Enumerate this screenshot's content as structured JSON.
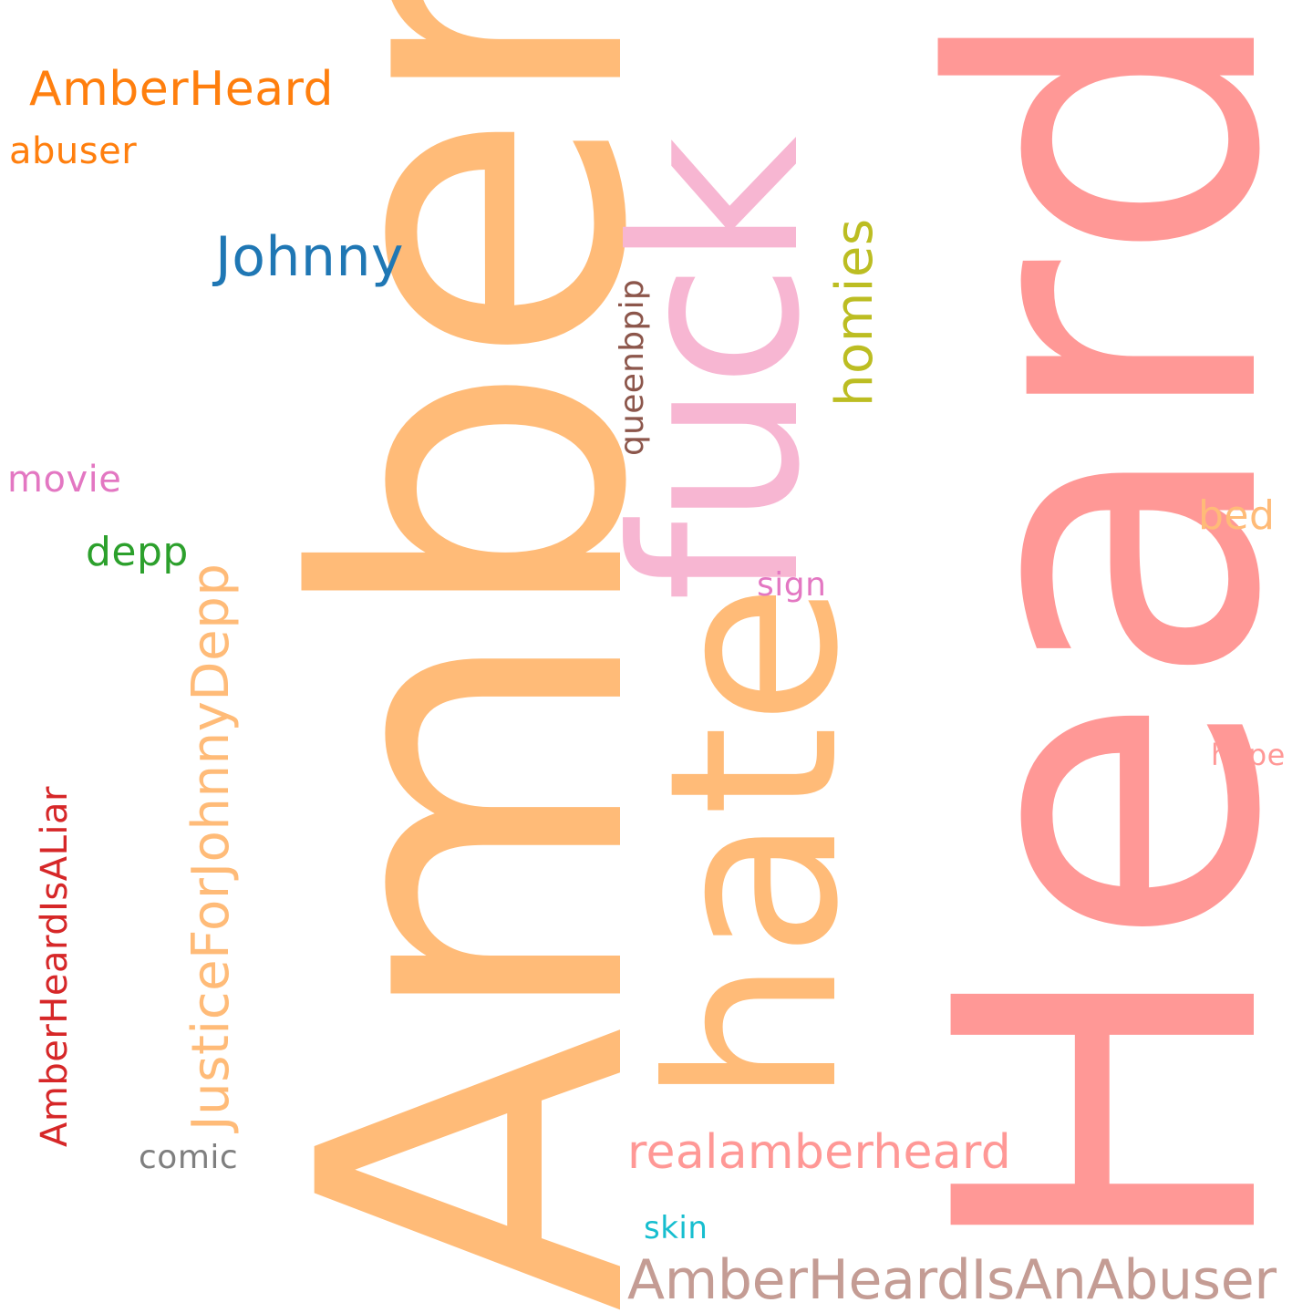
{
  "words": [
    {
      "id": "heard",
      "text": "Heard",
      "color": "#ff9896"
    },
    {
      "id": "amber",
      "text": "Amber",
      "color": "#ffbb78"
    },
    {
      "id": "fuck",
      "text": "fuck",
      "color": "#f7b6d2"
    },
    {
      "id": "hate",
      "text": "hate",
      "color": "#ffbb78"
    },
    {
      "id": "amberheardisanabuser",
      "text": "AmberHeardIsAnAbuser",
      "color": "#c49c94"
    },
    {
      "id": "justiceforjohnnydepp",
      "text": "JusticeForJohnnyDepp",
      "color": "#ffbb78"
    },
    {
      "id": "realamberheard",
      "text": "realamberheard",
      "color": "#ff9896"
    },
    {
      "id": "amberheard",
      "text": "AmberHeard",
      "color": "#ff7f0e"
    },
    {
      "id": "johnny",
      "text": "Johnny",
      "color": "#1f77b4"
    },
    {
      "id": "homies",
      "text": "homies",
      "color": "#bcbd22"
    },
    {
      "id": "amberheardisaliar",
      "text": "AmberHeardIsALiar",
      "color": "#d62728"
    },
    {
      "id": "abuser",
      "text": "abuser",
      "color": "#ff7f0e"
    },
    {
      "id": "movie",
      "text": "movie",
      "color": "#e377c2"
    },
    {
      "id": "depp",
      "text": "depp",
      "color": "#2ca02c"
    },
    {
      "id": "queenbpip",
      "text": "queenbpip",
      "color": "#8c564b"
    },
    {
      "id": "bed",
      "text": "bed",
      "color": "#ffbb78"
    },
    {
      "id": "sign",
      "text": "sign",
      "color": "#e377c2"
    },
    {
      "id": "comic",
      "text": "comic",
      "color": "#7f7f7f"
    },
    {
      "id": "hope",
      "text": "hope",
      "color": "#ff9896"
    },
    {
      "id": "skin",
      "text": "skin",
      "color": "#17becf"
    }
  ]
}
